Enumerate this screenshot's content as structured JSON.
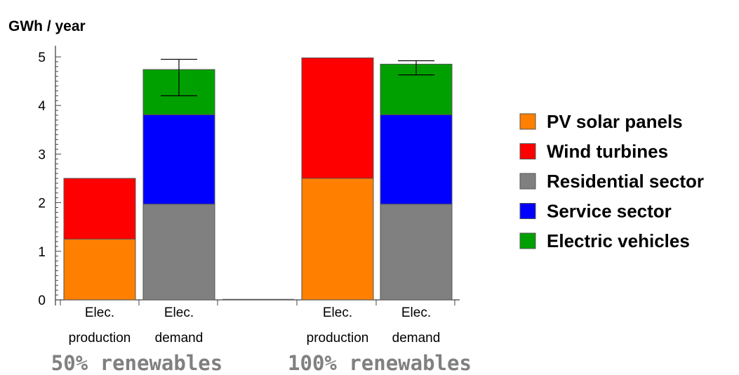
{
  "chart_data": {
    "type": "bar",
    "stacked": true,
    "ylabel": "GWh / year",
    "ylim": [
      0,
      5.2
    ],
    "yticks": [
      "0",
      "1",
      "2",
      "3",
      "4",
      "5"
    ],
    "grid": false,
    "legend_position": "right",
    "series": [
      {
        "name": "PV solar panels",
        "color": "#ff8000"
      },
      {
        "name": "Wind turbines",
        "color": "#ff0000"
      },
      {
        "name": "Residential sector",
        "color": "#808080"
      },
      {
        "name": "Service sector",
        "color": "#0000ff"
      },
      {
        "name": "Electric vehicles",
        "color": "#00a000"
      }
    ],
    "bars": [
      {
        "line1": "Elec.",
        "line2": "production",
        "segments": [
          {
            "series": "PV solar panels",
            "value": 1.25
          },
          {
            "series": "Wind turbines",
            "value": 1.25
          }
        ]
      },
      {
        "line1": "Elec.",
        "line2": "demand",
        "segments": [
          {
            "series": "Residential sector",
            "value": 1.97
          },
          {
            "series": "Service sector",
            "value": 1.84
          },
          {
            "series": "Electric vehicles",
            "value": 0.93
          }
        ],
        "error": [
          4.2,
          4.95
        ]
      },
      {
        "line1": "",
        "line2": "",
        "segments": []
      },
      {
        "line1": "Elec.",
        "line2": "production",
        "segments": [
          {
            "series": "PV solar panels",
            "value": 2.5
          },
          {
            "series": "Wind turbines",
            "value": 2.48
          }
        ]
      },
      {
        "line1": "Elec.",
        "line2": "demand",
        "segments": [
          {
            "series": "Residential sector",
            "value": 1.97
          },
          {
            "series": "Service sector",
            "value": 1.84
          },
          {
            "series": "Electric vehicles",
            "value": 1.04
          }
        ],
        "error": [
          4.63,
          4.92
        ]
      }
    ],
    "groups": [
      "50% renewables",
      "100% renewables"
    ]
  }
}
